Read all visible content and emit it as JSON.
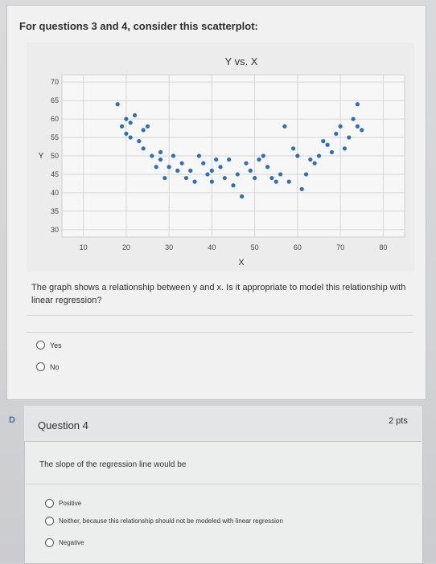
{
  "q3": {
    "intro": "For questions 3 and 4, consider this scatterplot:",
    "prompt": "The graph shows a relationship between y and x. Is it appropriate to model this relationship with linear regression?",
    "options": [
      "Yes",
      "No"
    ]
  },
  "q4": {
    "flag": "D",
    "title": "Question 4",
    "points": "2 pts",
    "prompt": "The slope of the regression line would be",
    "options": [
      "Positive",
      "Neither, because this relationship should not be modeled with linear regression",
      "Negative"
    ]
  },
  "chart_data": {
    "type": "scatter",
    "title": "Y vs. X",
    "xlabel": "X",
    "ylabel": "Y",
    "xlim": [
      5,
      85
    ],
    "ylim": [
      28,
      72
    ],
    "xticks": [
      10,
      20,
      30,
      40,
      50,
      60,
      70,
      80
    ],
    "yticks": [
      70,
      65,
      60,
      55,
      50,
      45,
      40,
      35,
      30
    ],
    "grid": true,
    "x": [
      18,
      19,
      20,
      20,
      21,
      21,
      22,
      23,
      24,
      24,
      25,
      26,
      27,
      28,
      28,
      29,
      30,
      31,
      32,
      33,
      34,
      35,
      36,
      37,
      38,
      39,
      40,
      40,
      41,
      42,
      43,
      44,
      45,
      46,
      47,
      48,
      49,
      50,
      51,
      52,
      53,
      54,
      55,
      56,
      57,
      58,
      59,
      60,
      61,
      62,
      63,
      64,
      65,
      66,
      67,
      68,
      69,
      70,
      71,
      72,
      73,
      74,
      74,
      75
    ],
    "y": [
      64,
      58,
      60,
      56,
      55,
      59,
      61,
      54,
      57,
      52,
      58,
      50,
      47,
      51,
      49,
      44,
      47,
      50,
      46,
      48,
      44,
      46,
      43,
      50,
      48,
      45,
      46,
      43,
      49,
      47,
      44,
      49,
      42,
      45,
      39,
      48,
      46,
      44,
      49,
      50,
      47,
      44,
      43,
      45,
      58,
      43,
      52,
      50,
      41,
      45,
      49,
      48,
      50,
      54,
      53,
      51,
      56,
      58,
      52,
      55,
      60,
      64,
      58,
      57
    ]
  }
}
